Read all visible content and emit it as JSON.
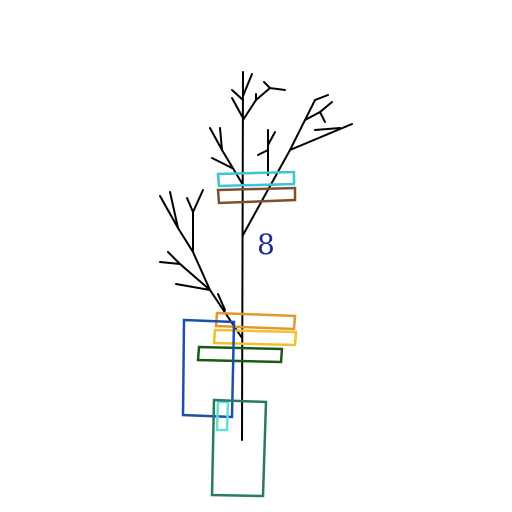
{
  "title": "",
  "digit": "8",
  "colors": {
    "background": "#ffffff",
    "tree": "#000000",
    "digit": "#1f2f8f",
    "box_cyan": "#3cc3d4",
    "box_brown": "#7a5030",
    "box_orange": "#e6962e",
    "box_gold": "#f0c030",
    "box_darkgreen": "#1a5a14",
    "box_blue": "#1f4fa8",
    "box_aqua": "#5fe0d8",
    "box_teal": "#2a7a62"
  },
  "shapes": [
    {
      "name": "cyan-rectangle",
      "color_key": "box_cyan"
    },
    {
      "name": "brown-rectangle",
      "color_key": "box_brown"
    },
    {
      "name": "orange-rectangle",
      "color_key": "box_orange"
    },
    {
      "name": "gold-rectangle",
      "color_key": "box_gold"
    },
    {
      "name": "dark-green-rectangle",
      "color_key": "box_darkgreen"
    },
    {
      "name": "blue-rectangle",
      "color_key": "box_blue"
    },
    {
      "name": "aqua-rectangle",
      "color_key": "box_aqua"
    },
    {
      "name": "teal-rectangle",
      "color_key": "box_teal"
    }
  ]
}
